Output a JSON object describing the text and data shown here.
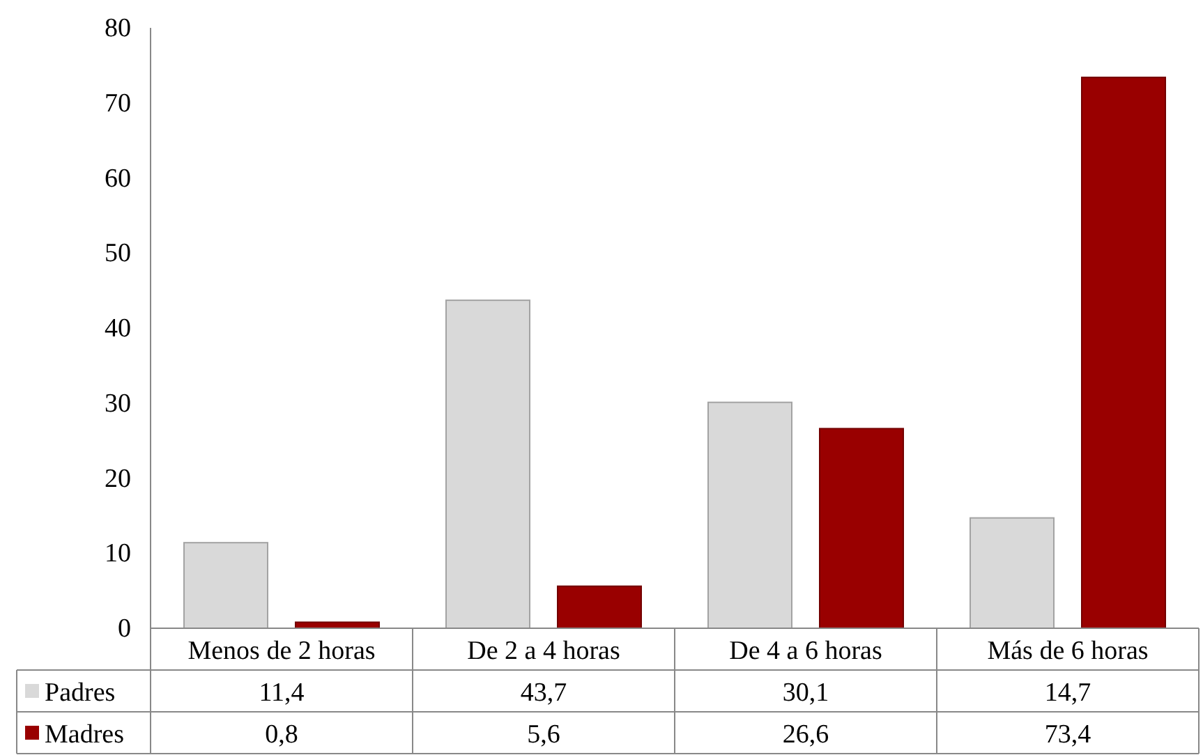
{
  "chart_data": {
    "type": "bar",
    "categories": [
      "Menos de 2 horas",
      "De 2 a 4 horas",
      "De 4 a 6 horas",
      "Más de 6 horas"
    ],
    "series": [
      {
        "name": "Padres",
        "color": "#d9d9d9",
        "values": [
          11.4,
          43.7,
          30.1,
          14.7
        ],
        "value_labels": [
          "11,4",
          "43,7",
          "30,1",
          "14,7"
        ]
      },
      {
        "name": "Madres",
        "color": "#990000",
        "values": [
          0.8,
          5.6,
          26.6,
          73.4
        ],
        "value_labels": [
          "0,8",
          "5,6",
          "26,6",
          "73,4"
        ]
      }
    ],
    "ylim": [
      0,
      80
    ],
    "yticks": [
      0,
      10,
      20,
      30,
      40,
      50,
      60,
      70,
      80
    ],
    "grid": false,
    "legend": "bottom left"
  }
}
